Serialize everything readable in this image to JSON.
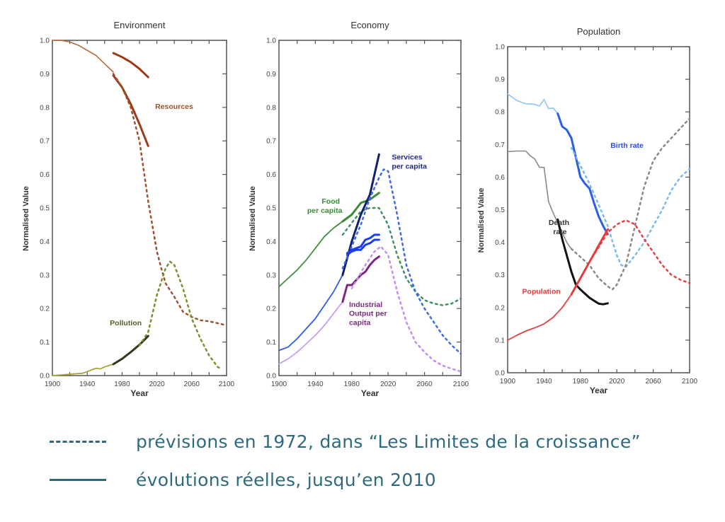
{
  "legend": {
    "dashed_label": "prévisions en 1972, dans “Les Limites de la croissance”",
    "solid_label": "évolutions réelles, jusqu’en 2010",
    "color": "#2e6a7e"
  },
  "chart_data": [
    {
      "type": "line",
      "title": "Environment",
      "xlabel": "Year",
      "ylabel": "Normalised Value",
      "xlim": [
        1900,
        2100
      ],
      "ylim": [
        0,
        1.0
      ],
      "xticks": [
        "1900",
        "1940",
        "1980",
        "2020",
        "2060",
        "2100"
      ],
      "yticks": [
        "0.0",
        "0.1",
        "0.2",
        "0.3",
        "0.4",
        "0.5",
        "0.6",
        "0.7",
        "0.8",
        "0.9",
        "1.0"
      ],
      "grid": false,
      "annotations": [
        {
          "text": "Resources",
          "x": 2018,
          "y": 0.795,
          "color": "#a0502a"
        },
        {
          "text": "Pollution",
          "x": 1966,
          "y": 0.15,
          "color": "#5c5a2a"
        }
      ],
      "series": [
        {
          "name": "Resources (historical)",
          "style": "solid",
          "color": "#b8693a",
          "width": 1.6,
          "x": [
            1900,
            1910,
            1920,
            1930,
            1940,
            1950,
            1960,
            1970
          ],
          "y": [
            1.0,
            1.0,
            0.995,
            0.985,
            0.97,
            0.955,
            0.93,
            0.905
          ]
        },
        {
          "name": "Resources actual (upper)",
          "style": "solid",
          "color": "#9c3a1a",
          "width": 3,
          "x": [
            1970,
            1980,
            1990,
            2000,
            2010
          ],
          "y": [
            0.962,
            0.95,
            0.935,
            0.915,
            0.89
          ]
        },
        {
          "name": "Resources actual (lower)",
          "style": "solid",
          "color": "#9c3a1a",
          "width": 3,
          "x": [
            1970,
            1980,
            1990,
            2000,
            2010
          ],
          "y": [
            0.895,
            0.86,
            0.81,
            0.75,
            0.685
          ]
        },
        {
          "name": "Resources forecast",
          "style": "dashed",
          "color": "#a0502a",
          "width": 2.5,
          "x": [
            1970,
            1980,
            1990,
            2000,
            2010,
            2020,
            2025,
            2030,
            2040,
            2050,
            2060,
            2070,
            2080,
            2100
          ],
          "y": [
            0.9,
            0.86,
            0.8,
            0.7,
            0.52,
            0.37,
            0.32,
            0.275,
            0.235,
            0.19,
            0.175,
            0.165,
            0.162,
            0.15
          ]
        },
        {
          "name": "Pollution (historical)",
          "style": "solid",
          "color": "#a8a33a",
          "width": 1.8,
          "x": [
            1900,
            1920,
            1935,
            1940,
            1950,
            1955,
            1960,
            1970
          ],
          "y": [
            0.0,
            0.004,
            0.007,
            0.012,
            0.022,
            0.02,
            0.026,
            0.034
          ]
        },
        {
          "name": "Pollution actual",
          "style": "solid",
          "color": "#2e3a1e",
          "width": 3,
          "x": [
            1970,
            1980,
            1990,
            2000,
            2010
          ],
          "y": [
            0.034,
            0.05,
            0.07,
            0.092,
            0.118
          ]
        },
        {
          "name": "Pollution forecast",
          "style": "dashed",
          "color": "#7d8c2e",
          "width": 2.5,
          "x": [
            2000,
            2010,
            2020,
            2030,
            2035,
            2040,
            2050,
            2060,
            2070,
            2080,
            2090,
            2095
          ],
          "y": [
            0.09,
            0.13,
            0.24,
            0.32,
            0.34,
            0.33,
            0.26,
            0.17,
            0.11,
            0.06,
            0.025,
            0.02
          ]
        }
      ]
    },
    {
      "type": "line",
      "title": "Economy",
      "xlabel": "Year",
      "ylabel": "Normalised Value",
      "xlim": [
        1900,
        2100
      ],
      "ylim": [
        0,
        1.0
      ],
      "xticks": [
        "1900",
        "1940",
        "1980",
        "2020",
        "2060",
        "2100"
      ],
      "yticks": [
        "0.0",
        "0.1",
        "0.2",
        "0.3",
        "0.4",
        "0.5",
        "0.6",
        "0.7",
        "0.8",
        "0.9",
        "1.0"
      ],
      "grid": false,
      "annotations": [
        {
          "text": "Services",
          "x": 2024,
          "y": 0.645,
          "color": "#1e2a8c"
        },
        {
          "text": "per capita",
          "x": 2024,
          "y": 0.617,
          "color": "#1e2a8c"
        },
        {
          "text": "Food",
          "x": 1947,
          "y": 0.513,
          "color": "#3a8a3a"
        },
        {
          "text": "per capita",
          "x": 1931,
          "y": 0.485,
          "color": "#3a8a3a"
        },
        {
          "text": "Industrial",
          "x": 1977,
          "y": 0.205,
          "color": "#7a2a80"
        },
        {
          "text": "Output per",
          "x": 1977,
          "y": 0.178,
          "color": "#7a2a80"
        },
        {
          "text": "capita",
          "x": 1977,
          "y": 0.151,
          "color": "#7a2a80"
        }
      ],
      "series": [
        {
          "name": "Food per capita (historical)",
          "style": "solid",
          "color": "#3f8f3f",
          "width": 1.8,
          "x": [
            1900,
            1910,
            1920,
            1930,
            1940,
            1950,
            1960,
            1970
          ],
          "y": [
            0.265,
            0.29,
            0.315,
            0.345,
            0.38,
            0.415,
            0.44,
            0.46
          ]
        },
        {
          "name": "Food per capita actual",
          "style": "solid",
          "color": "#3a8a3a",
          "width": 3,
          "x": [
            1970,
            1980,
            1990,
            2000,
            2010
          ],
          "y": [
            0.46,
            0.48,
            0.515,
            0.525,
            0.545
          ]
        },
        {
          "name": "Food per capita forecast",
          "style": "dashed",
          "color": "#3f8f5f",
          "width": 2.5,
          "x": [
            1970,
            1990,
            2000,
            2010,
            2020,
            2030,
            2040,
            2050,
            2060,
            2070,
            2080,
            2090,
            2100
          ],
          "y": [
            0.42,
            0.49,
            0.5,
            0.5,
            0.45,
            0.36,
            0.29,
            0.25,
            0.225,
            0.215,
            0.21,
            0.215,
            0.23
          ]
        },
        {
          "name": "Services per capita (historical)",
          "style": "solid",
          "color": "#2a5ee8",
          "width": 1.8,
          "x": [
            1900,
            1910,
            1920,
            1930,
            1940,
            1950,
            1960,
            1970
          ],
          "y": [
            0.075,
            0.085,
            0.11,
            0.14,
            0.17,
            0.21,
            0.25,
            0.3
          ]
        },
        {
          "name": "Services per capita actual",
          "style": "solid",
          "color": "#12206e",
          "width": 3,
          "x": [
            1970,
            1980,
            1990,
            2000,
            2010
          ],
          "y": [
            0.3,
            0.4,
            0.48,
            0.54,
            0.66
          ]
        },
        {
          "name": "Services per capita forecast",
          "style": "dashed",
          "color": "#3a6ae8",
          "width": 2.5,
          "x": [
            1970,
            1990,
            2000,
            2010,
            2015,
            2020,
            2030,
            2040,
            2050,
            2060,
            2070,
            2080,
            2090,
            2100
          ],
          "y": [
            0.32,
            0.45,
            0.53,
            0.59,
            0.615,
            0.61,
            0.48,
            0.33,
            0.25,
            0.2,
            0.16,
            0.12,
            0.09,
            0.065
          ]
        },
        {
          "name": "Industrial output actual (upper)",
          "style": "solid",
          "color": "#1a3ef0",
          "width": 3,
          "x": [
            1975,
            1980,
            1985,
            1990,
            1995,
            2000,
            2005,
            2010
          ],
          "y": [
            0.365,
            0.375,
            0.38,
            0.385,
            0.405,
            0.41,
            0.42,
            0.42
          ]
        },
        {
          "name": "Industrial output actual (lower)",
          "style": "solid",
          "color": "#1a3ef0",
          "width": 3,
          "x": [
            1975,
            1980,
            1985,
            1990,
            1995,
            2000,
            2005,
            2010
          ],
          "y": [
            0.36,
            0.37,
            0.375,
            0.375,
            0.39,
            0.395,
            0.405,
            0.405
          ]
        },
        {
          "name": "Industrial Output per capita (historical)",
          "style": "solid",
          "color": "#c79ef0",
          "width": 1.8,
          "x": [
            1900,
            1910,
            1920,
            1930,
            1940,
            1950,
            1960,
            1970
          ],
          "y": [
            0.035,
            0.05,
            0.07,
            0.095,
            0.12,
            0.15,
            0.185,
            0.22
          ]
        },
        {
          "name": "Industrial Output per capita actual",
          "style": "solid",
          "color": "#7a2a80",
          "width": 3,
          "x": [
            1970,
            1975,
            1980,
            1985,
            1990,
            1995,
            2000,
            2005,
            2010
          ],
          "y": [
            0.22,
            0.27,
            0.27,
            0.285,
            0.3,
            0.31,
            0.33,
            0.345,
            0.355
          ]
        },
        {
          "name": "Industrial Output per capita forecast",
          "style": "dashed",
          "color": "#c48ef0",
          "width": 2.5,
          "x": [
            1980,
            1995,
            2005,
            2012,
            2020,
            2030,
            2040,
            2050,
            2060,
            2070,
            2080,
            2090,
            2100
          ],
          "y": [
            0.26,
            0.33,
            0.37,
            0.385,
            0.36,
            0.25,
            0.16,
            0.1,
            0.07,
            0.045,
            0.03,
            0.02,
            0.012
          ]
        }
      ]
    },
    {
      "type": "line",
      "title": "Population",
      "xlabel": "Year",
      "ylabel": "Normalised Value",
      "xlim": [
        1900,
        2100
      ],
      "ylim": [
        0,
        1.0
      ],
      "xticks": [
        "1900",
        "1940",
        "1980",
        "2020",
        "2060",
        "2100"
      ],
      "yticks": [
        "0.0",
        "0.1",
        "0.2",
        "0.3",
        "0.4",
        "0.5",
        "0.6",
        "0.7",
        "0.8",
        "0.9",
        "1.0"
      ],
      "grid": false,
      "annotations": [
        {
          "text": "Birth rate",
          "x": 2013,
          "y": 0.69,
          "color": "#2a4ef0"
        },
        {
          "text": "Death",
          "x": 1945,
          "y": 0.453,
          "color": "#333333"
        },
        {
          "text": "rate",
          "x": 1950,
          "y": 0.425,
          "color": "#333333"
        },
        {
          "text": "Population",
          "x": 1916,
          "y": 0.242,
          "color": "#e63b3b"
        }
      ],
      "series": [
        {
          "name": "Birth rate (historical)",
          "style": "solid",
          "color": "#8cc4f4",
          "width": 1.6,
          "x": [
            1900,
            1910,
            1920,
            1930,
            1935,
            1940,
            1945,
            1950,
            1955
          ],
          "y": [
            0.855,
            0.835,
            0.825,
            0.823,
            0.818,
            0.838,
            0.81,
            0.812,
            0.795
          ]
        },
        {
          "name": "Birth rate actual",
          "style": "solid",
          "color": "#2a5ee8",
          "width": 3,
          "x": [
            1955,
            1960,
            1965,
            1970,
            1975,
            1980,
            1985,
            1990,
            1995,
            2000,
            2005,
            2010
          ],
          "y": [
            0.795,
            0.755,
            0.745,
            0.72,
            0.66,
            0.6,
            0.58,
            0.565,
            0.52,
            0.48,
            0.45,
            0.425
          ]
        },
        {
          "name": "Birth rate forecast",
          "style": "dashed",
          "color": "#7ab8f0",
          "width": 2.5,
          "x": [
            1970,
            1990,
            2010,
            2020,
            2025,
            2030,
            2040,
            2050,
            2060,
            2070,
            2080,
            2090,
            2100
          ],
          "y": [
            0.69,
            0.58,
            0.45,
            0.36,
            0.33,
            0.325,
            0.36,
            0.4,
            0.45,
            0.5,
            0.56,
            0.6,
            0.625
          ]
        },
        {
          "name": "Death rate (historical)",
          "style": "solid",
          "color": "#888888",
          "width": 1.6,
          "x": [
            1900,
            1910,
            1920,
            1925,
            1930,
            1935,
            1940,
            1945,
            1950,
            1955,
            1960,
            1965,
            1970
          ],
          "y": [
            0.678,
            0.68,
            0.68,
            0.665,
            0.655,
            0.63,
            0.63,
            0.525,
            0.49,
            0.46,
            0.43,
            0.4,
            0.38
          ]
        },
        {
          "name": "Death rate actual",
          "style": "solid",
          "color": "#111111",
          "width": 3,
          "x": [
            1955,
            1960,
            1965,
            1970,
            1975,
            1980,
            1990,
            2000,
            2005,
            2010
          ],
          "y": [
            0.47,
            0.41,
            0.36,
            0.31,
            0.27,
            0.255,
            0.23,
            0.212,
            0.21,
            0.213
          ]
        },
        {
          "name": "Death rate forecast",
          "style": "dashed",
          "color": "#888888",
          "width": 2.5,
          "x": [
            1970,
            1990,
            2000,
            2010,
            2015,
            2020,
            2030,
            2040,
            2050,
            2060,
            2070,
            2080,
            2090,
            2100
          ],
          "y": [
            0.38,
            0.33,
            0.29,
            0.265,
            0.255,
            0.27,
            0.33,
            0.45,
            0.57,
            0.65,
            0.69,
            0.72,
            0.75,
            0.78
          ]
        },
        {
          "name": "Population (historical)",
          "style": "solid",
          "color": "#e64040",
          "width": 1.8,
          "x": [
            1900,
            1910,
            1920,
            1930,
            1940,
            1950,
            1960,
            1970
          ],
          "y": [
            0.1,
            0.115,
            0.128,
            0.138,
            0.15,
            0.17,
            0.2,
            0.24
          ]
        },
        {
          "name": "Population actual",
          "style": "solid",
          "color": "#e63b3b",
          "width": 3,
          "x": [
            1970,
            1980,
            1990,
            2000,
            2010
          ],
          "y": [
            0.24,
            0.29,
            0.34,
            0.39,
            0.44
          ]
        },
        {
          "name": "Population forecast",
          "style": "dashed",
          "color": "#e64040",
          "width": 2.5,
          "x": [
            1990,
            2010,
            2020,
            2030,
            2040,
            2050,
            2060,
            2070,
            2080,
            2090,
            2100
          ],
          "y": [
            0.34,
            0.43,
            0.455,
            0.468,
            0.455,
            0.41,
            0.37,
            0.33,
            0.3,
            0.285,
            0.275
          ]
        }
      ]
    }
  ]
}
